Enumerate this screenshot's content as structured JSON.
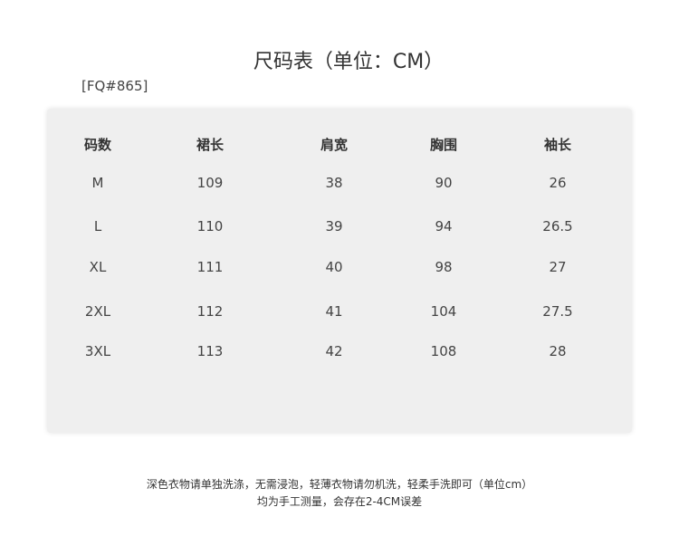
{
  "title": "尺码表（单位：CM）",
  "product_code": "[FQ#865]",
  "table": {
    "headers": [
      "码数",
      "裙长",
      "肩宽",
      "胸围",
      "袖长"
    ],
    "rows": [
      [
        "M",
        "109",
        "38",
        "90",
        "26"
      ],
      [
        "L",
        "110",
        "39",
        "94",
        "26.5"
      ],
      [
        "XL",
        "111",
        "40",
        "98",
        "27"
      ],
      [
        "2XL",
        "112",
        "41",
        "104",
        "27.5"
      ],
      [
        "3XL",
        "113",
        "42",
        "108",
        "28"
      ]
    ]
  },
  "notes": [
    "深色衣物请单独洗涤，无需浸泡，轻薄衣物请勿机洗，轻柔手洗即可（单位cm）",
    "均为手工测量，会存在2-4CM误差"
  ]
}
